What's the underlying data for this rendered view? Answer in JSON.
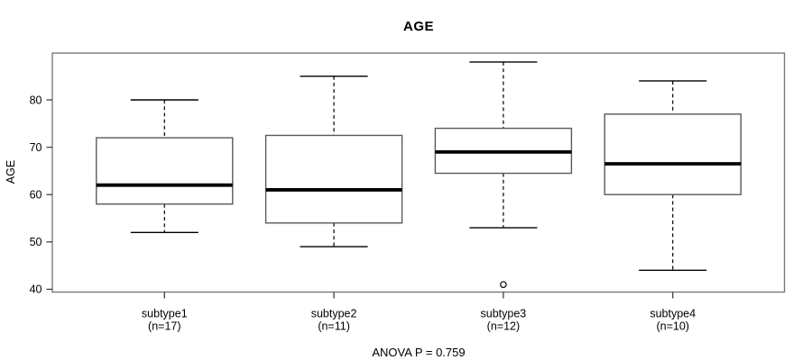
{
  "figure": {
    "title": "AGE",
    "y_axis_label": "AGE",
    "annotation": "ANOVA P = 0.759"
  },
  "chart_data": {
    "type": "boxplot",
    "title": "AGE",
    "xlabel": "",
    "ylabel": "AGE",
    "ylim": [
      39,
      90.5
    ],
    "yticks": [
      40,
      50,
      60,
      70,
      80
    ],
    "grid": false,
    "legend": "none",
    "annotation": "ANOVA P = 0.759",
    "categories": [
      "subtype1",
      "subtype2",
      "subtype3",
      "subtype4"
    ],
    "groups": [
      {
        "label": "subtype1",
        "sublabel": "(n=17)",
        "n": 17,
        "whisker_low": 52,
        "q1": 58,
        "median": 62,
        "q3": 72,
        "whisker_high": 80,
        "outliers": []
      },
      {
        "label": "subtype2",
        "sublabel": "(n=11)",
        "n": 11,
        "whisker_low": 49,
        "q1": 54,
        "median": 61,
        "q3": 72.5,
        "whisker_high": 85,
        "outliers": []
      },
      {
        "label": "subtype3",
        "sublabel": "(n=12)",
        "n": 12,
        "whisker_low": 53,
        "q1": 64.5,
        "median": 69,
        "q3": 74,
        "whisker_high": 88,
        "outliers": [
          41
        ]
      },
      {
        "label": "subtype4",
        "sublabel": "(n=10)",
        "n": 10,
        "whisker_low": 44,
        "q1": 60,
        "median": 66.5,
        "q3": 77,
        "whisker_high": 84,
        "outliers": []
      }
    ],
    "colors": {
      "box_fill": "#ffffff",
      "line": "#000000",
      "frame": "#7a7a7a",
      "tick": "#3f3f3f"
    }
  }
}
